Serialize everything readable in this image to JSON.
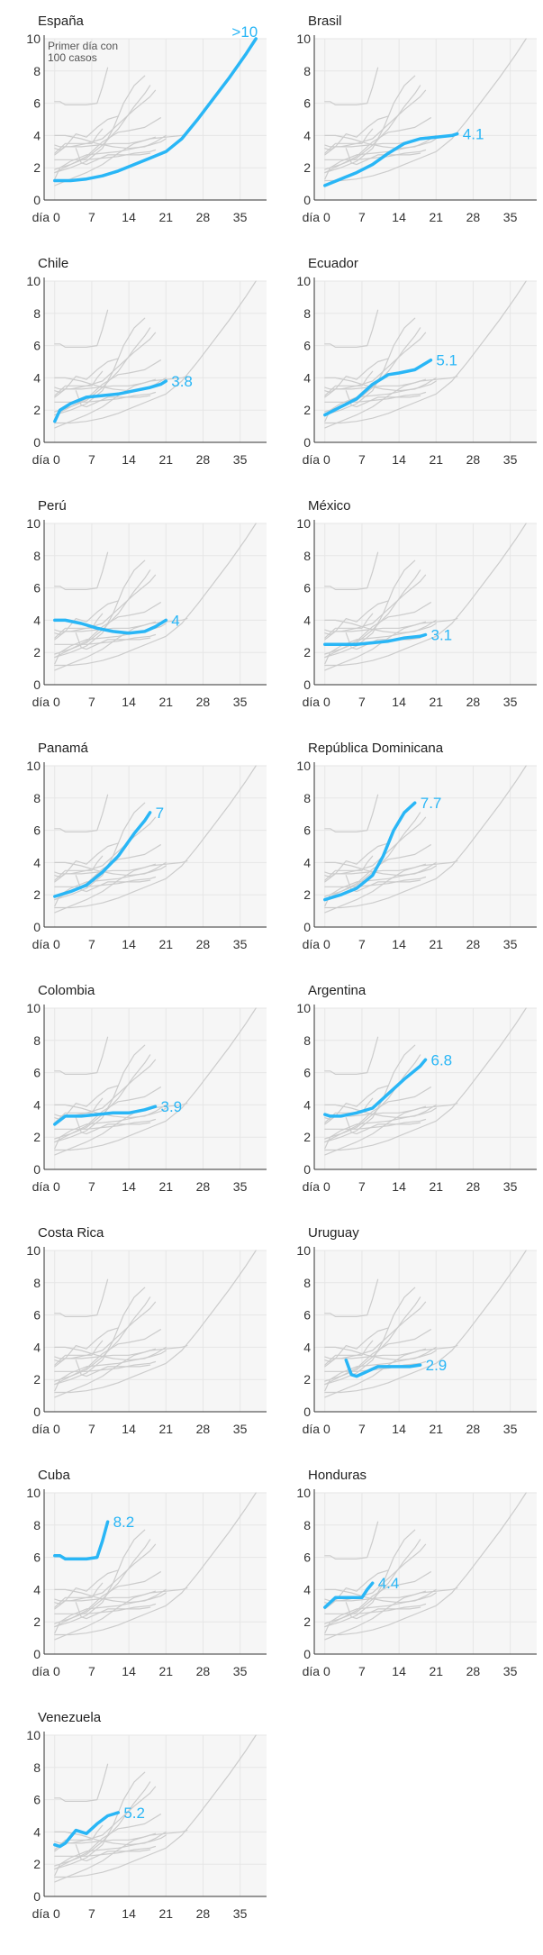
{
  "chart_data": {
    "type": "line",
    "xticks": [
      0,
      7,
      14,
      21,
      28,
      35
    ],
    "xtick_labels": [
      "día 0",
      "7",
      "14",
      "21",
      "28",
      "35"
    ],
    "yticks": [
      0,
      2,
      4,
      6,
      8,
      10
    ],
    "xlim": [
      -2,
      40
    ],
    "ylim": [
      0,
      10
    ],
    "grid": true,
    "highlight_color": "#29b6f6",
    "background_color": "#cccccc",
    "note": "Primer día con 100 casos",
    "series": [
      {
        "name": "España",
        "label": ">10",
        "x": [
          0,
          3,
          6,
          9,
          12,
          15,
          18,
          21,
          24,
          27,
          30,
          33,
          36,
          38
        ],
        "y": [
          1.2,
          1.2,
          1.3,
          1.5,
          1.8,
          2.2,
          2.6,
          3.0,
          3.8,
          5.0,
          6.3,
          7.6,
          9.0,
          10.0
        ]
      },
      {
        "name": "Brasil",
        "label": "4.1",
        "x": [
          0,
          3,
          6,
          9,
          12,
          15,
          18,
          21,
          24,
          25
        ],
        "y": [
          0.9,
          1.3,
          1.7,
          2.2,
          2.9,
          3.5,
          3.8,
          3.9,
          4.0,
          4.1
        ]
      },
      {
        "name": "Chile",
        "label": "3.8",
        "x": [
          0,
          1,
          3,
          6,
          9,
          12,
          15,
          18,
          20,
          21
        ],
        "y": [
          1.3,
          2.0,
          2.4,
          2.8,
          2.9,
          3.0,
          3.2,
          3.4,
          3.6,
          3.8
        ]
      },
      {
        "name": "Ecuador",
        "label": "5.1",
        "x": [
          0,
          3,
          6,
          9,
          12,
          14,
          17,
          20
        ],
        "y": [
          1.7,
          2.2,
          2.7,
          3.6,
          4.2,
          4.3,
          4.5,
          5.1
        ]
      },
      {
        "name": "Perú",
        "label": "4",
        "x": [
          0,
          2,
          5,
          8,
          11,
          14,
          17,
          19,
          21
        ],
        "y": [
          4.0,
          4.0,
          3.8,
          3.5,
          3.3,
          3.2,
          3.3,
          3.6,
          4.0
        ]
      },
      {
        "name": "México",
        "label": "3.1",
        "x": [
          0,
          3,
          6,
          9,
          12,
          15,
          18,
          19
        ],
        "y": [
          2.5,
          2.5,
          2.5,
          2.6,
          2.7,
          2.9,
          3.0,
          3.1
        ]
      },
      {
        "name": "Panamá",
        "label": "7",
        "x": [
          0,
          3,
          6,
          9,
          12,
          15,
          17,
          18
        ],
        "y": [
          1.9,
          2.2,
          2.6,
          3.4,
          4.4,
          5.8,
          6.6,
          7.1
        ]
      },
      {
        "name": "República Dominicana",
        "label": "7.7",
        "x": [
          0,
          3,
          6,
          9,
          11,
          13,
          15,
          17
        ],
        "y": [
          1.7,
          2.0,
          2.4,
          3.2,
          4.4,
          6.0,
          7.1,
          7.7
        ]
      },
      {
        "name": "Colombia",
        "label": "3.9",
        "x": [
          0,
          2,
          5,
          8,
          11,
          14,
          17,
          19
        ],
        "y": [
          2.8,
          3.3,
          3.3,
          3.4,
          3.5,
          3.5,
          3.7,
          3.9
        ]
      },
      {
        "name": "Argentina",
        "label": "6.8",
        "x": [
          0,
          1,
          3,
          6,
          9,
          12,
          15,
          18,
          19
        ],
        "y": [
          3.4,
          3.3,
          3.3,
          3.5,
          3.8,
          4.7,
          5.6,
          6.4,
          6.8
        ]
      },
      {
        "name": "Costa Rica",
        "label": "",
        "x": [],
        "y": []
      },
      {
        "name": "Uruguay",
        "label": "2.9",
        "x": [
          4,
          5,
          6,
          8,
          10,
          13,
          16,
          18
        ],
        "y": [
          3.2,
          2.3,
          2.2,
          2.5,
          2.8,
          2.8,
          2.8,
          2.9
        ]
      },
      {
        "name": "Cuba",
        "label": "8.2",
        "x": [
          0,
          1,
          2,
          4,
          6,
          8,
          9,
          10
        ],
        "y": [
          6.1,
          6.1,
          5.9,
          5.9,
          5.9,
          6.0,
          7.0,
          8.2
        ]
      },
      {
        "name": "Honduras",
        "label": "4.4",
        "x": [
          0,
          2,
          3,
          5,
          7,
          8,
          9
        ],
        "y": [
          2.9,
          3.5,
          3.5,
          3.5,
          3.5,
          4.0,
          4.4
        ]
      },
      {
        "name": "Venezuela",
        "label": "5.2",
        "x": [
          0,
          1,
          2,
          4,
          6,
          8,
          10,
          12
        ],
        "y": [
          3.2,
          3.1,
          3.3,
          4.1,
          3.9,
          4.5,
          5.0,
          5.2
        ]
      }
    ]
  }
}
